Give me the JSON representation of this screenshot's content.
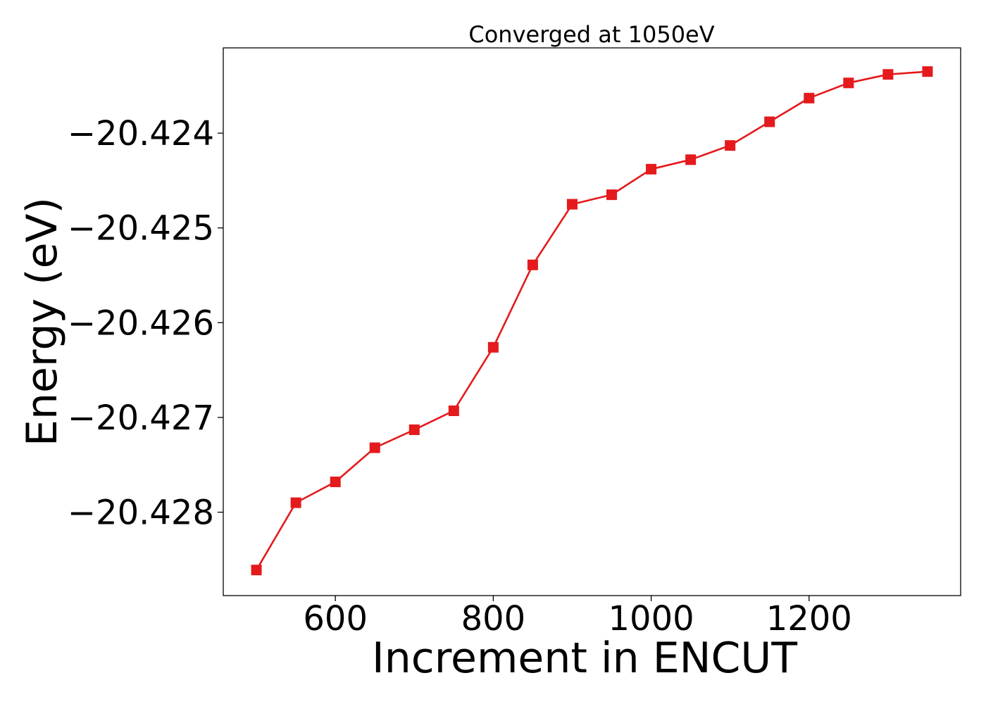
{
  "chart_data": {
    "type": "line",
    "title": "Converged at 1050eV",
    "xlabel": "Increment in ENCUT",
    "ylabel": "Energy (eV)",
    "xlim": [
      458,
      1392
    ],
    "ylim": [
      -20.42888,
      -20.4231
    ],
    "xticks": [
      600,
      800,
      1000,
      1200
    ],
    "xtick_labels": [
      "600",
      "800",
      "1000",
      "1200"
    ],
    "yticks": [
      -20.424,
      -20.425,
      -20.426,
      -20.427,
      -20.428
    ],
    "ytick_labels": [
      "−20.424",
      "−20.425",
      "−20.426",
      "−20.427",
      "−20.428"
    ],
    "grid": false,
    "series": [
      {
        "color": "#e41a1c",
        "marker": "square",
        "x": [
          500,
          550,
          600,
          650,
          700,
          750,
          800,
          850,
          900,
          950,
          1000,
          1050,
          1100,
          1150,
          1200,
          1250,
          1300,
          1350
        ],
        "y": [
          -20.42861,
          -20.4279,
          -20.42768,
          -20.42732,
          -20.42713,
          -20.42693,
          -20.42626,
          -20.42539,
          -20.42475,
          -20.42465,
          -20.42438,
          -20.42428,
          -20.42413,
          -20.42388,
          -20.42363,
          -20.42347,
          -20.42338,
          -20.42335
        ]
      }
    ]
  }
}
